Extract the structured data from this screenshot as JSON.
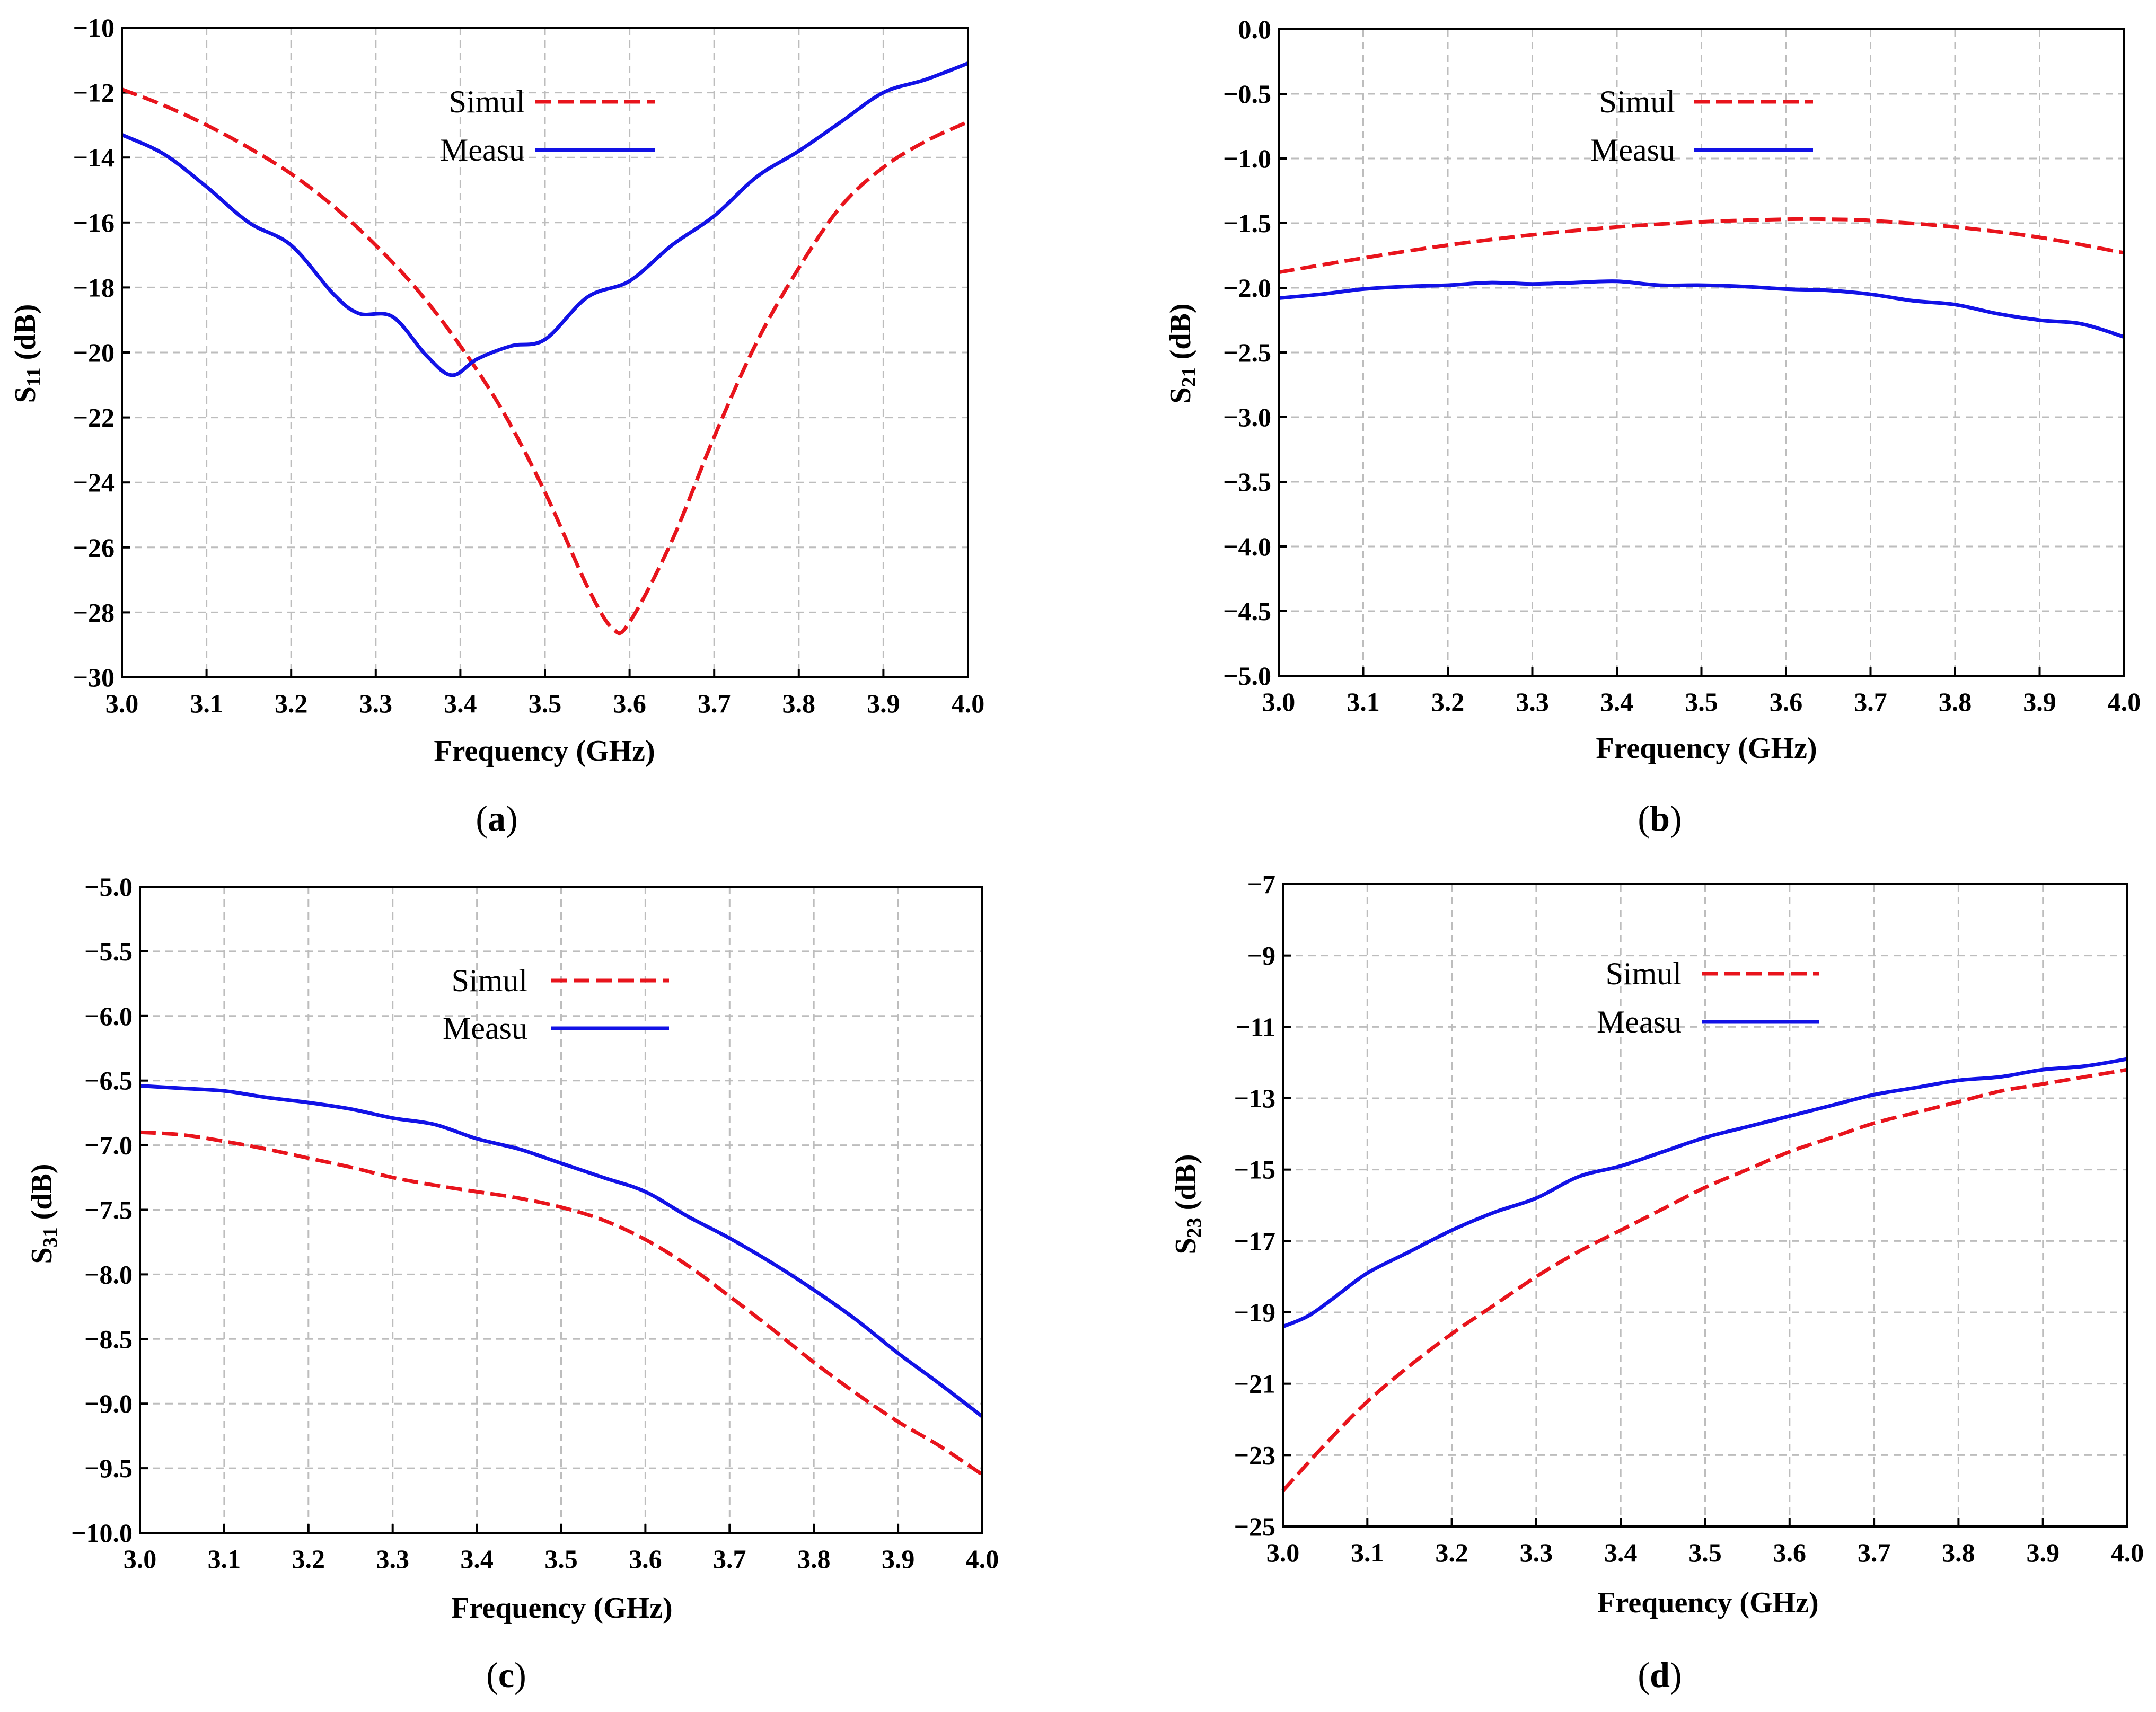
{
  "figure": {
    "colors": {
      "simulated": "#e8141c",
      "measured": "#1212e6",
      "grid": "#bdbdbd"
    }
  },
  "chart_data": [
    {
      "id": "a",
      "type": "line",
      "caption_letter": "a",
      "xlabel": "Frequency (GHz)",
      "ylabel_main": "S",
      "ylabel_sub": "11",
      "ylabel_unit": " (dB)",
      "xlim": [
        3.0,
        4.0
      ],
      "ylim": [
        -30,
        -10
      ],
      "xticks": [
        "3.0",
        "3.1",
        "3.2",
        "3.3",
        "3.4",
        "3.5",
        "3.6",
        "3.7",
        "3.8",
        "3.9",
        "4.0"
      ],
      "yticks": [
        "−10",
        "−12",
        "−14",
        "−16",
        "−18",
        "−20",
        "−22",
        "−24",
        "−26",
        "−28",
        "−30"
      ],
      "ytick_values": [
        -10,
        -12,
        -14,
        -16,
        -18,
        -20,
        -22,
        -24,
        -26,
        -28,
        -30
      ],
      "legend": {
        "position": "top-center",
        "simulated": "Simul",
        "measured": "Measu"
      },
      "series": [
        {
          "name": "Simul",
          "style": "dashed",
          "x": [
            3.0,
            3.05,
            3.1,
            3.15,
            3.2,
            3.25,
            3.3,
            3.35,
            3.4,
            3.45,
            3.5,
            3.55,
            3.58,
            3.6,
            3.65,
            3.7,
            3.75,
            3.8,
            3.85,
            3.9,
            3.95,
            4.0
          ],
          "y": [
            -11.9,
            -12.4,
            -13.0,
            -13.7,
            -14.5,
            -15.5,
            -16.7,
            -18.1,
            -19.8,
            -21.8,
            -24.3,
            -27.2,
            -28.5,
            -28.3,
            -25.8,
            -22.6,
            -19.7,
            -17.4,
            -15.5,
            -14.3,
            -13.5,
            -12.9
          ]
        },
        {
          "name": "Measu",
          "style": "solid",
          "x": [
            3.0,
            3.05,
            3.1,
            3.15,
            3.2,
            3.25,
            3.28,
            3.32,
            3.36,
            3.39,
            3.42,
            3.46,
            3.5,
            3.55,
            3.6,
            3.65,
            3.7,
            3.75,
            3.8,
            3.85,
            3.9,
            3.95,
            4.0
          ],
          "y": [
            -13.3,
            -13.9,
            -14.9,
            -16.0,
            -16.7,
            -18.2,
            -18.8,
            -18.9,
            -20.1,
            -20.7,
            -20.2,
            -19.8,
            -19.6,
            -18.3,
            -17.8,
            -16.7,
            -15.8,
            -14.6,
            -13.8,
            -12.9,
            -12.0,
            -11.6,
            -11.1
          ]
        }
      ]
    },
    {
      "id": "b",
      "type": "line",
      "caption_letter": "b",
      "xlabel": "Frequency (GHz)",
      "ylabel_main": "S",
      "ylabel_sub": "21",
      "ylabel_unit": " (dB)",
      "xlim": [
        3.0,
        4.0
      ],
      "ylim": [
        -5.0,
        0.0
      ],
      "xticks": [
        "3.0",
        "3.1",
        "3.2",
        "3.3",
        "3.4",
        "3.5",
        "3.6",
        "3.7",
        "3.8",
        "3.9",
        "4.0"
      ],
      "yticks": [
        "0.0",
        "−0.5",
        "−1.0",
        "−1.5",
        "−2.0",
        "−2.5",
        "−3.0",
        "−3.5",
        "−4.0",
        "−4.5",
        "−5.0"
      ],
      "ytick_values": [
        0,
        -0.5,
        -1.0,
        -1.5,
        -2.0,
        -2.5,
        -3.0,
        -3.5,
        -4.0,
        -4.5,
        -5.0
      ],
      "legend": {
        "position": "top-center",
        "simulated": "Simul",
        "measured": "Measu"
      },
      "series": [
        {
          "name": "Simul",
          "style": "dashed",
          "x": [
            3.0,
            3.1,
            3.2,
            3.3,
            3.4,
            3.5,
            3.6,
            3.65,
            3.7,
            3.8,
            3.9,
            4.0
          ],
          "y": [
            -1.88,
            -1.77,
            -1.67,
            -1.59,
            -1.53,
            -1.49,
            -1.47,
            -1.47,
            -1.48,
            -1.53,
            -1.61,
            -1.73
          ]
        },
        {
          "name": "Measu",
          "style": "solid",
          "x": [
            3.0,
            3.05,
            3.1,
            3.15,
            3.2,
            3.25,
            3.3,
            3.35,
            3.4,
            3.45,
            3.5,
            3.55,
            3.6,
            3.65,
            3.7,
            3.75,
            3.8,
            3.85,
            3.9,
            3.95,
            4.0
          ],
          "y": [
            -2.08,
            -2.05,
            -2.01,
            -1.99,
            -1.98,
            -1.96,
            -1.97,
            -1.96,
            -1.95,
            -1.98,
            -1.98,
            -1.99,
            -2.01,
            -2.02,
            -2.05,
            -2.1,
            -2.13,
            -2.2,
            -2.25,
            -2.28,
            -2.38
          ]
        }
      ]
    },
    {
      "id": "c",
      "type": "line",
      "caption_letter": "c",
      "xlabel": "Frequency (GHz)",
      "ylabel_main": "S",
      "ylabel_sub": "31",
      "ylabel_unit": " (dB)",
      "xlim": [
        3.0,
        4.0
      ],
      "ylim": [
        -10.0,
        -5.0
      ],
      "xticks": [
        "3.0",
        "3.1",
        "3.2",
        "3.3",
        "3.4",
        "3.5",
        "3.6",
        "3.7",
        "3.8",
        "3.9",
        "4.0"
      ],
      "yticks": [
        "−5.0",
        "−5.5",
        "−6.0",
        "−6.5",
        "−7.0",
        "−7.5",
        "−8.0",
        "−8.5",
        "−9.0",
        "−9.5",
        "−10.0"
      ],
      "ytick_values": [
        -5.0,
        -5.5,
        -6.0,
        -6.5,
        -7.0,
        -7.5,
        -8.0,
        -8.5,
        -9.0,
        -9.5,
        -10.0
      ],
      "legend": {
        "position": "top-center",
        "simulated": "Simul",
        "measured": "Measu"
      },
      "series": [
        {
          "name": "Simul",
          "style": "dashed",
          "x": [
            3.0,
            3.05,
            3.1,
            3.15,
            3.2,
            3.25,
            3.3,
            3.35,
            3.4,
            3.45,
            3.5,
            3.55,
            3.6,
            3.65,
            3.7,
            3.75,
            3.8,
            3.85,
            3.9,
            3.95,
            4.0
          ],
          "y": [
            -6.9,
            -6.92,
            -6.97,
            -7.03,
            -7.1,
            -7.17,
            -7.25,
            -7.31,
            -7.36,
            -7.41,
            -7.48,
            -7.58,
            -7.73,
            -7.93,
            -8.17,
            -8.42,
            -8.68,
            -8.92,
            -9.14,
            -9.33,
            -9.55
          ]
        },
        {
          "name": "Measu",
          "style": "solid",
          "x": [
            3.0,
            3.05,
            3.1,
            3.15,
            3.2,
            3.25,
            3.3,
            3.35,
            3.4,
            3.45,
            3.5,
            3.55,
            3.6,
            3.65,
            3.7,
            3.75,
            3.8,
            3.85,
            3.9,
            3.95,
            4.0
          ],
          "y": [
            -6.54,
            -6.56,
            -6.58,
            -6.63,
            -6.67,
            -6.72,
            -6.79,
            -6.84,
            -6.95,
            -7.03,
            -7.14,
            -7.25,
            -7.36,
            -7.55,
            -7.72,
            -7.91,
            -8.12,
            -8.35,
            -8.61,
            -8.85,
            -9.1
          ]
        }
      ]
    },
    {
      "id": "d",
      "type": "line",
      "caption_letter": "d",
      "xlabel": "Frequency (GHz)",
      "ylabel_main": "S",
      "ylabel_sub": "23",
      "ylabel_unit": " (dB)",
      "xlim": [
        3.0,
        4.0
      ],
      "ylim": [
        -25,
        -7
      ],
      "xticks": [
        "3.0",
        "3.1",
        "3.2",
        "3.3",
        "3.4",
        "3.5",
        "3.6",
        "3.7",
        "3.8",
        "3.9",
        "4.0"
      ],
      "yticks": [
        "−7",
        "−9",
        "−11",
        "−13",
        "−15",
        "−17",
        "−19",
        "−21",
        "−23",
        "−25"
      ],
      "ytick_values": [
        -7,
        -9,
        -11,
        -13,
        -15,
        -17,
        -19,
        -21,
        -23,
        -25
      ],
      "legend": {
        "position": "top-center",
        "simulated": "Simul",
        "measured": "Measu"
      },
      "series": [
        {
          "name": "Simul",
          "style": "dashed",
          "x": [
            3.0,
            3.05,
            3.1,
            3.15,
            3.2,
            3.25,
            3.3,
            3.35,
            3.4,
            3.45,
            3.5,
            3.55,
            3.6,
            3.65,
            3.7,
            3.75,
            3.8,
            3.85,
            3.9,
            3.95,
            4.0
          ],
          "y": [
            -24.0,
            -22.7,
            -21.5,
            -20.5,
            -19.6,
            -18.8,
            -18.0,
            -17.3,
            -16.7,
            -16.1,
            -15.5,
            -15.0,
            -14.5,
            -14.1,
            -13.7,
            -13.4,
            -13.1,
            -12.8,
            -12.6,
            -12.4,
            -12.2
          ]
        },
        {
          "name": "Measu",
          "style": "solid",
          "x": [
            3.0,
            3.03,
            3.06,
            3.1,
            3.15,
            3.2,
            3.25,
            3.3,
            3.35,
            3.4,
            3.45,
            3.5,
            3.55,
            3.6,
            3.65,
            3.7,
            3.75,
            3.8,
            3.85,
            3.9,
            3.95,
            4.0
          ],
          "y": [
            -19.4,
            -19.1,
            -18.6,
            -17.9,
            -17.3,
            -16.7,
            -16.2,
            -15.8,
            -15.2,
            -14.9,
            -14.5,
            -14.1,
            -13.8,
            -13.5,
            -13.2,
            -12.9,
            -12.7,
            -12.5,
            -12.4,
            -12.2,
            -12.1,
            -11.9
          ]
        }
      ]
    }
  ]
}
